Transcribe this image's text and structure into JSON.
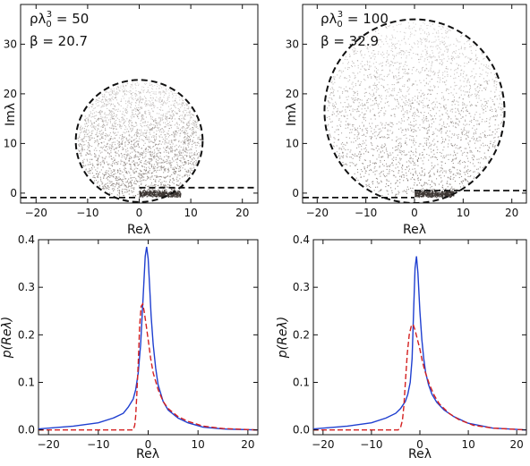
{
  "chart_data": [
    {
      "type": "scatter",
      "xlabel": "Reλ",
      "ylabel": "Imλ",
      "xlim": [
        -23,
        23
      ],
      "ylim": [
        -2,
        38
      ],
      "xticks": [
        "−20",
        "−10",
        "0",
        "10",
        "20"
      ],
      "yticks": [
        "0",
        "10",
        "20",
        "30"
      ],
      "grid": false,
      "annotations": [
        {
          "lhs": "ρλ",
          "sub": "0",
          "sup": "3",
          "rhs": " = 50"
        },
        {
          "text": "β = 20.7"
        }
      ],
      "cloud": {
        "center": [
          0,
          10.5
        ],
        "radius": 12,
        "color": "#6f6560"
      },
      "circle": {
        "center": [
          0,
          10.5
        ],
        "radius": 12.3,
        "style": "dashed",
        "color": "#111111"
      },
      "dashed_lines": [
        {
          "x": [
            -23,
            0
          ],
          "y": [
            -0.9,
            -0.9
          ]
        },
        {
          "x": [
            0,
            23
          ],
          "y": [
            1.1,
            1.1
          ]
        }
      ],
      "dense_band": {
        "x": [
          0,
          8
        ],
        "y": [
          -0.8,
          0.2
        ]
      }
    },
    {
      "type": "scatter",
      "xlabel": "Reλ",
      "ylabel": "Imλ",
      "xlim": [
        -23,
        23
      ],
      "ylim": [
        -2,
        38
      ],
      "xticks": [
        "−20",
        "−10",
        "0",
        "10",
        "20"
      ],
      "yticks": [
        "0",
        "10",
        "20",
        "30"
      ],
      "grid": false,
      "annotations": [
        {
          "lhs": "ρλ",
          "sub": "0",
          "sup": "3",
          "rhs": " = 100"
        },
        {
          "text": "β = 32.9"
        }
      ],
      "cloud": {
        "center": [
          0,
          16.5
        ],
        "radius": 18.2,
        "color": "#6f6560"
      },
      "circle": {
        "center": [
          0,
          16.5
        ],
        "radius": 18.5,
        "style": "dashed",
        "color": "#111111"
      },
      "dashed_lines": [
        {
          "x": [
            -23,
            0
          ],
          "y": [
            -0.9,
            -0.9
          ]
        },
        {
          "x": [
            0,
            23
          ],
          "y": [
            0.5,
            0.5
          ]
        }
      ],
      "dense_band": {
        "x": [
          0,
          8
        ],
        "y": [
          -0.8,
          0.2
        ]
      }
    },
    {
      "type": "line",
      "xlabel": "Reλ",
      "ylabel": "p(Reλ)",
      "xlim": [
        -22,
        22
      ],
      "ylim": [
        -0.01,
        0.4
      ],
      "xticks": [
        "−20",
        "−10",
        "0",
        "10",
        "20"
      ],
      "yticks": [
        "0.0",
        "0.1",
        "0.2",
        "0.3",
        "0.4"
      ],
      "grid": false,
      "series": [
        {
          "style": "solid",
          "color": "#1f3fd0",
          "x": [
            -22,
            -15,
            -10,
            -7,
            -5,
            -4,
            -3,
            -2.5,
            -2,
            -1.5,
            -1,
            -0.6,
            -0.3,
            0,
            0.3,
            0.6,
            1,
            1.5,
            2,
            3,
            4,
            6,
            8,
            11,
            15,
            22
          ],
          "y": [
            0.002,
            0.008,
            0.015,
            0.025,
            0.035,
            0.048,
            0.065,
            0.085,
            0.12,
            0.18,
            0.28,
            0.365,
            0.385,
            0.36,
            0.3,
            0.24,
            0.18,
            0.13,
            0.095,
            0.06,
            0.042,
            0.025,
            0.015,
            0.006,
            0.002,
            0.0
          ]
        },
        {
          "style": "dashed",
          "color": "#d42020",
          "x": [
            -22,
            -15,
            -10,
            -5,
            -3.5,
            -3,
            -2.7,
            -2.5,
            -2.3,
            -2,
            -1.7,
            -1.4,
            -1.1,
            -0.8,
            -0.4,
            0,
            0.5,
            1,
            2,
            3,
            4,
            6,
            8,
            11,
            15,
            22
          ],
          "y": [
            0.0,
            0.0,
            0.0,
            0.0,
            0.0,
            0.0,
            0.01,
            0.03,
            0.07,
            0.14,
            0.22,
            0.26,
            0.265,
            0.25,
            0.22,
            0.19,
            0.15,
            0.12,
            0.085,
            0.06,
            0.045,
            0.028,
            0.018,
            0.008,
            0.003,
            0.0
          ]
        }
      ]
    },
    {
      "type": "line",
      "xlabel": "Reλ",
      "ylabel": "p(Reλ)",
      "xlim": [
        -22,
        22
      ],
      "ylim": [
        -0.01,
        0.4
      ],
      "xticks": [
        "−20",
        "−10",
        "0",
        "10",
        "20"
      ],
      "yticks": [
        "0.0",
        "0.1",
        "0.2",
        "0.3",
        "0.4"
      ],
      "grid": false,
      "series": [
        {
          "style": "solid",
          "color": "#1f3fd0",
          "x": [
            -22,
            -15,
            -10,
            -7,
            -5,
            -4,
            -3,
            -2.5,
            -2,
            -1.6,
            -1.3,
            -1,
            -0.7,
            -0.4,
            0,
            0.4,
            0.8,
            1.2,
            1.8,
            2.5,
            3.5,
            5,
            7,
            10,
            15,
            22
          ],
          "y": [
            0.002,
            0.008,
            0.015,
            0.025,
            0.035,
            0.045,
            0.06,
            0.075,
            0.1,
            0.15,
            0.25,
            0.34,
            0.365,
            0.33,
            0.25,
            0.19,
            0.15,
            0.12,
            0.095,
            0.075,
            0.058,
            0.042,
            0.028,
            0.014,
            0.004,
            0.0
          ]
        },
        {
          "style": "dashed",
          "color": "#d42020",
          "x": [
            -22,
            -15,
            -10,
            -6,
            -4.5,
            -4,
            -3.6,
            -3.3,
            -3,
            -2.6,
            -2.2,
            -1.8,
            -1.4,
            -1,
            -0.5,
            0,
            0.5,
            1,
            2,
            3,
            4,
            6,
            8,
            11,
            15,
            22
          ],
          "y": [
            0.0,
            0.0,
            0.0,
            0.0,
            0.0,
            0.005,
            0.02,
            0.05,
            0.1,
            0.16,
            0.2,
            0.218,
            0.222,
            0.21,
            0.19,
            0.17,
            0.145,
            0.125,
            0.095,
            0.072,
            0.055,
            0.035,
            0.022,
            0.01,
            0.004,
            0.0
          ]
        }
      ]
    }
  ]
}
